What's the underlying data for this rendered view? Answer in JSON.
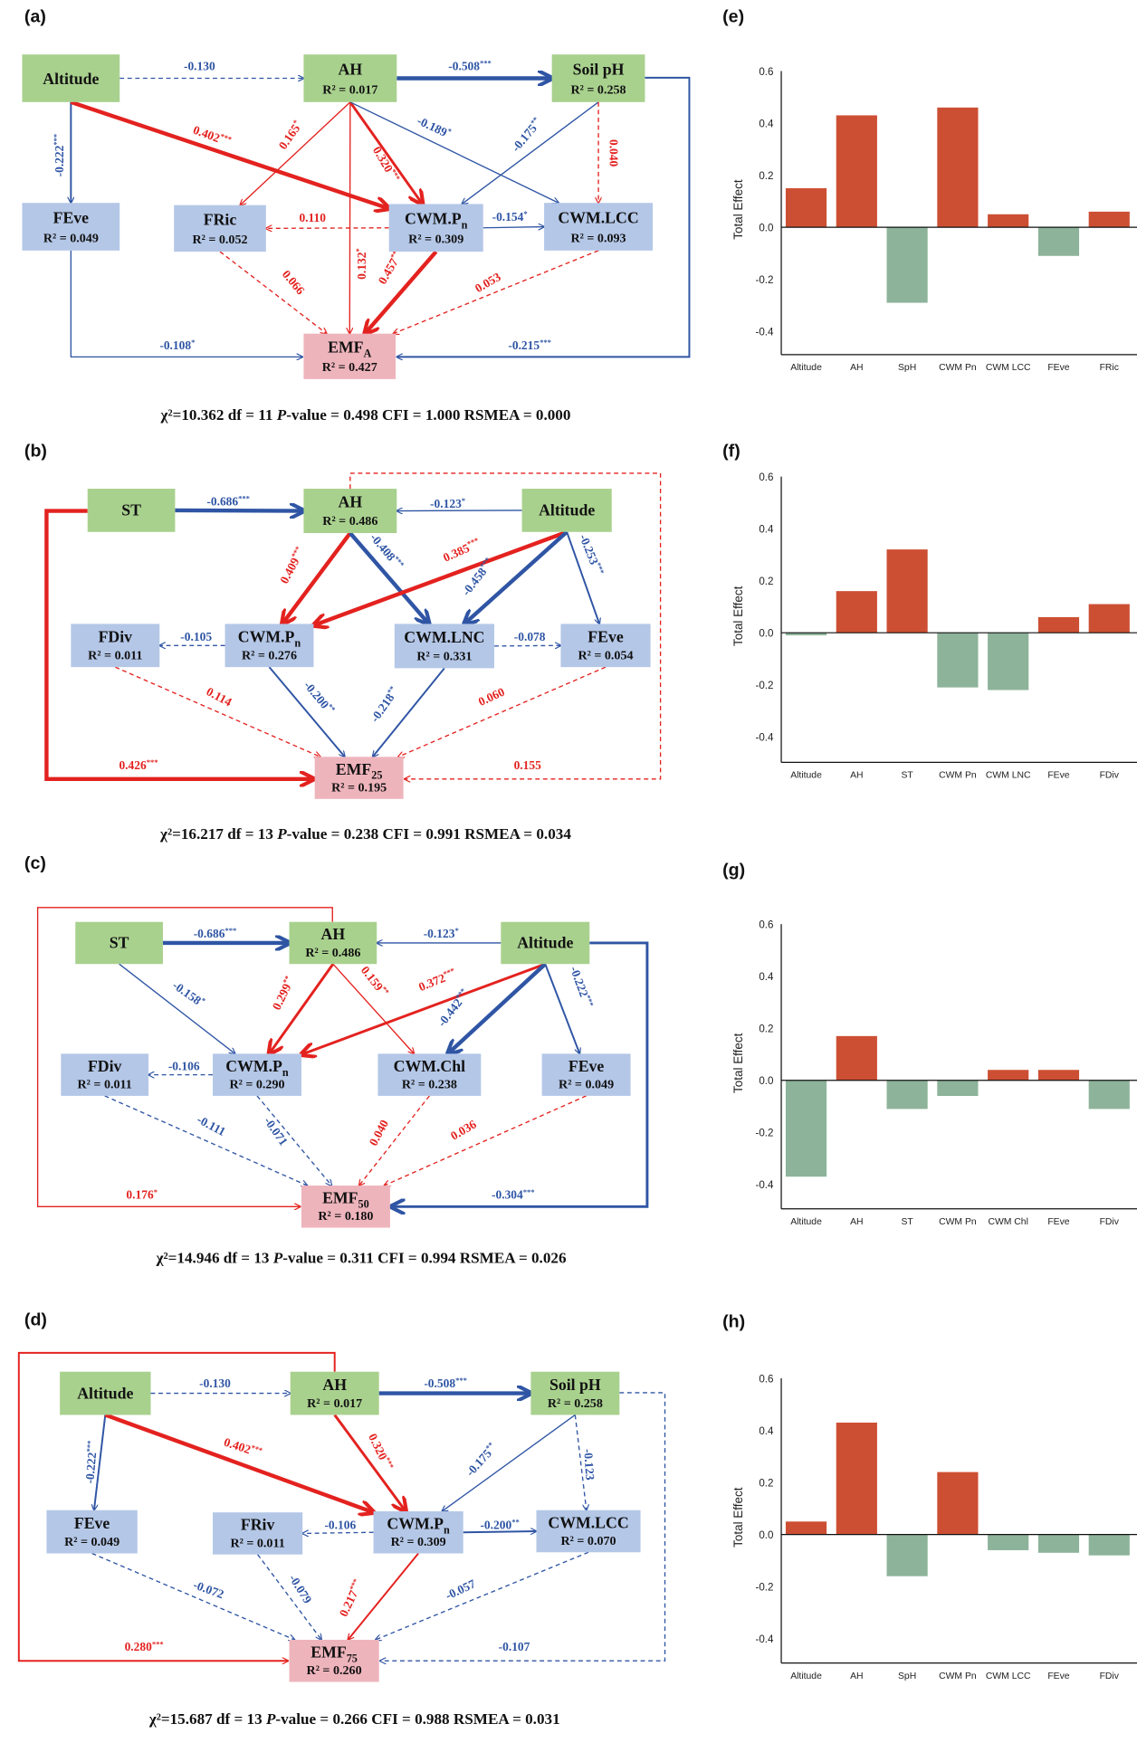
{
  "colors": {
    "exogenous_box": "#a9d18e",
    "mediator_box": "#b4c7e7",
    "response_box": "#eeb4bc",
    "positive_path": "#e3221f",
    "negative_path": "#2f55a4",
    "positive_bar": "#cd4f33",
    "negative_bar": "#8db39a"
  },
  "diagrams": [
    {
      "label": "(a)",
      "stats": {
        "chi_prefix": "χ²=10.362 df = 11 ",
        "p_italic": "P",
        "rest": "-value = 0.498 CFI = 1.000 RSMEA = 0.000"
      },
      "nodes": [
        {
          "id": "Altitude",
          "title": "Altitude",
          "sub": "",
          "r2": "",
          "kind": "exo"
        },
        {
          "id": "AH",
          "title": "AH",
          "sub": "",
          "r2": "R² = 0.017",
          "kind": "exo"
        },
        {
          "id": "SoilpH",
          "title": "Soil pH",
          "sub": "",
          "r2": "R² = 0.258",
          "kind": "exo"
        },
        {
          "id": "FEve",
          "title": "FEve",
          "sub": "",
          "r2": "R² = 0.049",
          "kind": "med"
        },
        {
          "id": "FRic",
          "title": "FRic",
          "sub": "",
          "r2": "R² = 0.052",
          "kind": "med"
        },
        {
          "id": "CWMPn",
          "title": "CWM.P",
          "sub": "n",
          "r2": "R² = 0.309",
          "kind": "med"
        },
        {
          "id": "CWMLCC",
          "title": "CWM.LCC",
          "sub": "",
          "r2": "R² = 0.093",
          "kind": "med"
        },
        {
          "id": "EMF",
          "title": "EMF",
          "sub": "A",
          "r2": "R² = 0.427",
          "kind": "resp"
        }
      ],
      "paths": [
        {
          "from": "Altitude",
          "to": "AH",
          "coef": "-0.130",
          "sig": "",
          "sign": "neg",
          "dashed": true
        },
        {
          "from": "AH",
          "to": "SoilpH",
          "coef": "-0.508",
          "sig": "***",
          "sign": "neg",
          "dashed": false
        },
        {
          "from": "Altitude",
          "to": "FEve",
          "coef": "-0.222",
          "sig": "***",
          "sign": "neg",
          "dashed": false
        },
        {
          "from": "Altitude",
          "to": "CWMPn",
          "coef": "0.402",
          "sig": "***",
          "sign": "pos",
          "dashed": false
        },
        {
          "from": "AH",
          "to": "FRic",
          "coef": "0.165",
          "sig": "*",
          "sign": "pos",
          "dashed": false
        },
        {
          "from": "AH",
          "to": "CWMPn",
          "coef": "0.320",
          "sig": "***",
          "sign": "pos",
          "dashed": false
        },
        {
          "from": "AH",
          "to": "CWMLCC",
          "coef": "-0.189",
          "sig": "*",
          "sign": "neg",
          "dashed": false
        },
        {
          "from": "AH",
          "to": "EMF",
          "coef": "0.132",
          "sig": "*",
          "sign": "pos",
          "dashed": false
        },
        {
          "from": "SoilpH",
          "to": "CWMPn",
          "coef": "-0.175",
          "sig": "**",
          "sign": "neg",
          "dashed": false
        },
        {
          "from": "SoilpH",
          "to": "CWMLCC",
          "coef": "0.040",
          "sig": "",
          "sign": "pos",
          "dashed": true
        },
        {
          "from": "CWMPn",
          "to": "FRic",
          "coef": "0.110",
          "sig": "",
          "sign": "pos",
          "dashed": true
        },
        {
          "from": "CWMPn",
          "to": "CWMLCC",
          "coef": "-0.154",
          "sig": "*",
          "sign": "neg",
          "dashed": false
        },
        {
          "from": "FRic",
          "to": "EMF",
          "coef": "0.066",
          "sig": "",
          "sign": "pos",
          "dashed": true
        },
        {
          "from": "CWMPn",
          "to": "EMF",
          "coef": "0.457",
          "sig": "***",
          "sign": "pos",
          "dashed": false
        },
        {
          "from": "CWMLCC",
          "to": "EMF",
          "coef": "0.053",
          "sig": "",
          "sign": "pos",
          "dashed": true
        },
        {
          "from": "FEve",
          "to": "EMF",
          "coef": "-0.108",
          "sig": "*",
          "sign": "neg",
          "dashed": false
        },
        {
          "from": "SoilpH",
          "to": "EMF",
          "coef": "-0.215",
          "sig": "***",
          "sign": "neg",
          "dashed": false
        }
      ]
    },
    {
      "label": "(b)",
      "stats": {
        "chi_prefix": "χ²=16.217 df = 13 ",
        "p_italic": "P",
        "rest": "-value = 0.238 CFI = 0.991 RSMEA = 0.034"
      },
      "nodes": [
        {
          "id": "ST",
          "title": "ST",
          "sub": "",
          "r2": "",
          "kind": "exo"
        },
        {
          "id": "AH",
          "title": "AH",
          "sub": "",
          "r2": "R² = 0.486",
          "kind": "exo"
        },
        {
          "id": "Altitude",
          "title": "Altitude",
          "sub": "",
          "r2": "",
          "kind": "exo"
        },
        {
          "id": "FDiv",
          "title": "FDiv",
          "sub": "",
          "r2": "R² = 0.011",
          "kind": "med"
        },
        {
          "id": "CWMPn",
          "title": "CWM.P",
          "sub": "n",
          "r2": "R² = 0.276",
          "kind": "med"
        },
        {
          "id": "CWMLNC",
          "title": "CWM.LNC",
          "sub": "",
          "r2": "R² = 0.331",
          "kind": "med"
        },
        {
          "id": "FEve",
          "title": "FEve",
          "sub": "",
          "r2": "R² = 0.054",
          "kind": "med"
        },
        {
          "id": "EMF",
          "title": "EMF",
          "sub": "25",
          "r2": "R² = 0.195",
          "kind": "resp"
        }
      ],
      "paths": [
        {
          "from": "ST",
          "to": "AH",
          "coef": "-0.686",
          "sig": "***",
          "sign": "neg",
          "dashed": false
        },
        {
          "from": "Altitude",
          "to": "AH",
          "coef": "-0.123",
          "sig": "*",
          "sign": "neg",
          "dashed": false
        },
        {
          "from": "AH",
          "to": "CWMPn",
          "coef": "0.409",
          "sig": "***",
          "sign": "pos",
          "dashed": false
        },
        {
          "from": "AH",
          "to": "CWMLNC",
          "coef": "-0.408",
          "sig": "***",
          "sign": "neg",
          "dashed": false
        },
        {
          "from": "Altitude",
          "to": "CWMPn",
          "coef": "0.385",
          "sig": "***",
          "sign": "pos",
          "dashed": false
        },
        {
          "from": "Altitude",
          "to": "CWMLNC",
          "coef": "-0.458",
          "sig": "***",
          "sign": "neg",
          "dashed": false
        },
        {
          "from": "Altitude",
          "to": "FEve",
          "coef": "-0.253",
          "sig": "***",
          "sign": "neg",
          "dashed": false
        },
        {
          "from": "CWMPn",
          "to": "FDiv",
          "coef": "-0.105",
          "sig": "",
          "sign": "neg",
          "dashed": true
        },
        {
          "from": "CWMLNC",
          "to": "FEve",
          "coef": "-0.078",
          "sig": "",
          "sign": "neg",
          "dashed": true
        },
        {
          "from": "FDiv",
          "to": "EMF",
          "coef": "0.114",
          "sig": "",
          "sign": "pos",
          "dashed": true
        },
        {
          "from": "CWMPn",
          "to": "EMF",
          "coef": "-0.200",
          "sig": "**",
          "sign": "neg",
          "dashed": false
        },
        {
          "from": "CWMLNC",
          "to": "EMF",
          "coef": "-0.218",
          "sig": "**",
          "sign": "neg",
          "dashed": false
        },
        {
          "from": "FEve",
          "to": "EMF",
          "coef": "0.060",
          "sig": "",
          "sign": "pos",
          "dashed": true
        },
        {
          "from": "ST",
          "to": "EMF",
          "coef": "0.426",
          "sig": "***",
          "sign": "pos",
          "dashed": false
        },
        {
          "from": "AH",
          "to": "EMF",
          "coef": "0.155",
          "sig": "",
          "sign": "pos",
          "dashed": true
        }
      ]
    },
    {
      "label": "(c)",
      "stats": {
        "chi_prefix": "χ²=14.946 df = 13 ",
        "p_italic": "P",
        "rest": "-value = 0.311 CFI = 0.994 RSMEA = 0.026"
      },
      "nodes": [
        {
          "id": "ST",
          "title": "ST",
          "sub": "",
          "r2": "",
          "kind": "exo"
        },
        {
          "id": "AH",
          "title": "AH",
          "sub": "",
          "r2": "R² = 0.486",
          "kind": "exo"
        },
        {
          "id": "Altitude",
          "title": "Altitude",
          "sub": "",
          "r2": "",
          "kind": "exo"
        },
        {
          "id": "FDiv",
          "title": "FDiv",
          "sub": "",
          "r2": "R² = 0.011",
          "kind": "med"
        },
        {
          "id": "CWMPn",
          "title": "CWM.P",
          "sub": "n",
          "r2": "R² = 0.290",
          "kind": "med"
        },
        {
          "id": "CWMChl",
          "title": "CWM.Chl",
          "sub": "",
          "r2": "R² = 0.238",
          "kind": "med"
        },
        {
          "id": "FEve",
          "title": "FEve",
          "sub": "",
          "r2": "R² = 0.049",
          "kind": "med"
        },
        {
          "id": "EMF",
          "title": "EMF",
          "sub": "50",
          "r2": "R² = 0.180",
          "kind": "resp"
        }
      ],
      "paths": [
        {
          "from": "ST",
          "to": "AH",
          "coef": "-0.686",
          "sig": "***",
          "sign": "neg",
          "dashed": false
        },
        {
          "from": "Altitude",
          "to": "AH",
          "coef": "-0.123",
          "sig": "*",
          "sign": "neg",
          "dashed": false
        },
        {
          "from": "ST",
          "to": "CWMPn",
          "coef": "-0.158",
          "sig": "*",
          "sign": "neg",
          "dashed": false
        },
        {
          "from": "AH",
          "to": "CWMPn",
          "coef": "0.299",
          "sig": "**",
          "sign": "pos",
          "dashed": false
        },
        {
          "from": "AH",
          "to": "CWMChl",
          "coef": "0.159",
          "sig": "**",
          "sign": "pos",
          "dashed": false
        },
        {
          "from": "Altitude",
          "to": "CWMPn",
          "coef": "0.372",
          "sig": "***",
          "sign": "pos",
          "dashed": false
        },
        {
          "from": "Altitude",
          "to": "CWMChl",
          "coef": "-0.442",
          "sig": "***",
          "sign": "neg",
          "dashed": false
        },
        {
          "from": "Altitude",
          "to": "FEve",
          "coef": "-0.222",
          "sig": "***",
          "sign": "neg",
          "dashed": false
        },
        {
          "from": "CWMPn",
          "to": "FDiv",
          "coef": "-0.106",
          "sig": "",
          "sign": "neg",
          "dashed": true
        },
        {
          "from": "FDiv",
          "to": "EMF",
          "coef": "-0.111",
          "sig": "",
          "sign": "neg",
          "dashed": true
        },
        {
          "from": "CWMPn",
          "to": "EMF",
          "coef": "-0.071",
          "sig": "",
          "sign": "neg",
          "dashed": true
        },
        {
          "from": "CWMChl",
          "to": "EMF",
          "coef": "0.040",
          "sig": "",
          "sign": "pos",
          "dashed": true
        },
        {
          "from": "FEve",
          "to": "EMF",
          "coef": "0.036",
          "sig": "",
          "sign": "pos",
          "dashed": true
        },
        {
          "from": "AH",
          "to": "EMF",
          "coef": "0.176",
          "sig": "*",
          "sign": "pos",
          "dashed": false
        },
        {
          "from": "Altitude",
          "to": "EMF",
          "coef": "-0.304",
          "sig": "***",
          "sign": "neg",
          "dashed": false
        }
      ]
    },
    {
      "label": "(d)",
      "stats": {
        "chi_prefix": "χ²=15.687 df = 13 ",
        "p_italic": "P",
        "rest": "-value = 0.266 CFI = 0.988 RSMEA = 0.031"
      },
      "nodes": [
        {
          "id": "Altitude",
          "title": "Altitude",
          "sub": "",
          "r2": "",
          "kind": "exo"
        },
        {
          "id": "AH",
          "title": "AH",
          "sub": "",
          "r2": "R² = 0.017",
          "kind": "exo"
        },
        {
          "id": "SoilpH",
          "title": "Soil pH",
          "sub": "",
          "r2": "R² = 0.258",
          "kind": "exo"
        },
        {
          "id": "FEve",
          "title": "FEve",
          "sub": "",
          "r2": "R² = 0.049",
          "kind": "med"
        },
        {
          "id": "FRiv",
          "title": "FRiv",
          "sub": "",
          "r2": "R² = 0.011",
          "kind": "med"
        },
        {
          "id": "CWMPn",
          "title": "CWM.P",
          "sub": "n",
          "r2": "R² = 0.309",
          "kind": "med"
        },
        {
          "id": "CWMLCC",
          "title": "CWM.LCC",
          "sub": "",
          "r2": "R² = 0.070",
          "kind": "med"
        },
        {
          "id": "EMF",
          "title": "EMF",
          "sub": "75",
          "r2": "R² = 0.260",
          "kind": "resp"
        }
      ],
      "paths": [
        {
          "from": "Altitude",
          "to": "AH",
          "coef": "-0.130",
          "sig": "",
          "sign": "neg",
          "dashed": true
        },
        {
          "from": "AH",
          "to": "SoilpH",
          "coef": "-0.508",
          "sig": "***",
          "sign": "neg",
          "dashed": false
        },
        {
          "from": "Altitude",
          "to": "FEve",
          "coef": "-0.222",
          "sig": "***",
          "sign": "neg",
          "dashed": false
        },
        {
          "from": "Altitude",
          "to": "CWMPn",
          "coef": "0.402",
          "sig": "***",
          "sign": "pos",
          "dashed": false
        },
        {
          "from": "AH",
          "to": "CWMPn",
          "coef": "0.320",
          "sig": "***",
          "sign": "pos",
          "dashed": false
        },
        {
          "from": "SoilpH",
          "to": "CWMPn",
          "coef": "-0.175",
          "sig": "**",
          "sign": "neg",
          "dashed": false
        },
        {
          "from": "SoilpH",
          "to": "CWMLCC",
          "coef": "-0.123",
          "sig": "",
          "sign": "neg",
          "dashed": true
        },
        {
          "from": "CWMPn",
          "to": "FRiv",
          "coef": "-0.106",
          "sig": "",
          "sign": "neg",
          "dashed": true
        },
        {
          "from": "CWMPn",
          "to": "CWMLCC",
          "coef": "-0.200",
          "sig": "**",
          "sign": "neg",
          "dashed": false
        },
        {
          "from": "FEve",
          "to": "EMF",
          "coef": "-0.072",
          "sig": "",
          "sign": "neg",
          "dashed": true
        },
        {
          "from": "FRiv",
          "to": "EMF",
          "coef": "-0.079",
          "sig": "",
          "sign": "neg",
          "dashed": true
        },
        {
          "from": "CWMPn",
          "to": "EMF",
          "coef": "0.217",
          "sig": "***",
          "sign": "pos",
          "dashed": false
        },
        {
          "from": "CWMLCC",
          "to": "EMF",
          "coef": "-0.057",
          "sig": "",
          "sign": "neg",
          "dashed": true
        },
        {
          "from": "AH",
          "to": "EMF",
          "coef": "0.280",
          "sig": "***",
          "sign": "pos",
          "dashed": false
        },
        {
          "from": "SoilpH",
          "to": "EMF",
          "coef": "-0.107",
          "sig": "",
          "sign": "neg",
          "dashed": true
        }
      ]
    }
  ],
  "chart_data": [
    {
      "panel": "(e)",
      "type": "bar",
      "title": "",
      "xlabel": "",
      "ylabel": "Total Effect",
      "categories": [
        "Altitude",
        "AH",
        "SpH",
        "CWM Pn",
        "CWM LCC",
        "FEve",
        "FRic"
      ],
      "values": [
        0.15,
        0.43,
        -0.29,
        0.46,
        0.05,
        -0.11,
        0.06
      ],
      "ylim": [
        -0.5,
        0.6
      ],
      "yticks": [
        "0.6",
        "0.4",
        "0.2",
        "0.0",
        "-0.2",
        "-0.4"
      ],
      "ytick_values": [
        0.6,
        0.4,
        0.2,
        0.0,
        -0.2,
        -0.4
      ],
      "grid": false,
      "legend": "none"
    },
    {
      "panel": "(f)",
      "type": "bar",
      "title": "",
      "xlabel": "",
      "ylabel": "Total Effect",
      "categories": [
        "Altitude",
        "AH",
        "ST",
        "CWM Pn",
        "CWM LNC",
        "FEve",
        "FDiv"
      ],
      "values": [
        -0.01,
        0.16,
        0.32,
        -0.21,
        -0.22,
        0.06,
        0.11
      ],
      "ylim": [
        -0.5,
        0.6
      ],
      "yticks": [
        "0.6",
        "0.4",
        "0.2",
        "0.0",
        "-0.2",
        "-0.4"
      ],
      "ytick_values": [
        0.6,
        0.4,
        0.2,
        0.0,
        -0.2,
        -0.4
      ],
      "grid": false,
      "legend": "none"
    },
    {
      "panel": "(g)",
      "type": "bar",
      "title": "",
      "xlabel": "",
      "ylabel": "Total Effect",
      "categories": [
        "Altitude",
        "AH",
        "ST",
        "CWM Pn",
        "CWM Chl",
        "FEve",
        "FDiv"
      ],
      "values": [
        -0.37,
        0.17,
        -0.11,
        -0.06,
        0.04,
        0.04,
        -0.11
      ],
      "ylim": [
        -0.5,
        0.6
      ],
      "yticks": [
        "0.6",
        "0.4",
        "0.2",
        "0.0",
        "-0.2",
        "-0.4"
      ],
      "ytick_values": [
        0.6,
        0.4,
        0.2,
        0.0,
        -0.2,
        -0.4
      ],
      "grid": false,
      "legend": "none"
    },
    {
      "panel": "(h)",
      "type": "bar",
      "title": "",
      "xlabel": "",
      "ylabel": "Total Effect",
      "categories": [
        "Altitude",
        "AH",
        "SpH",
        "CWM Pn",
        "CWM LCC",
        "FEve",
        "FDiv"
      ],
      "values": [
        0.05,
        0.43,
        -0.16,
        0.24,
        -0.06,
        -0.07,
        -0.08
      ],
      "ylim": [
        -0.5,
        0.6
      ],
      "yticks": [
        "0.6",
        "0.4",
        "0.2",
        "0.0",
        "-0.2",
        "-0.4"
      ],
      "ytick_values": [
        0.6,
        0.4,
        0.2,
        0.0,
        -0.2,
        -0.4
      ],
      "grid": false,
      "legend": "none"
    }
  ]
}
